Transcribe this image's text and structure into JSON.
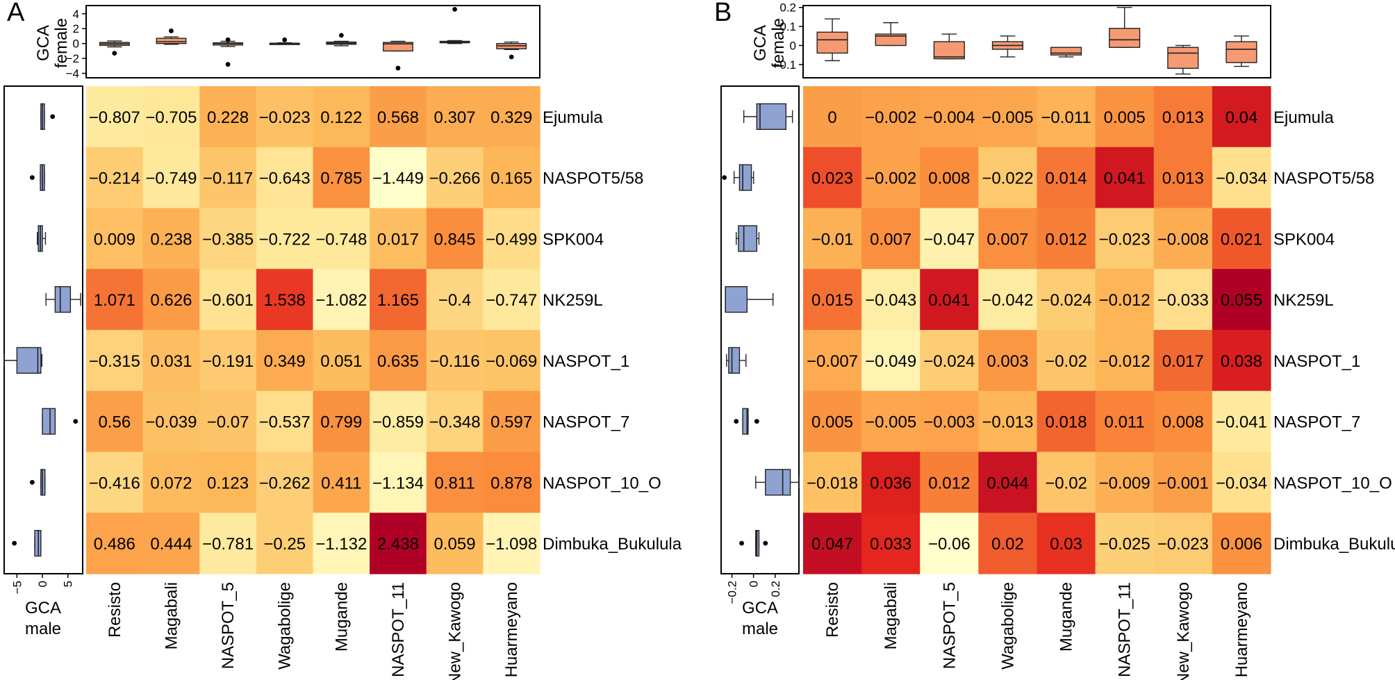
{
  "chart_data": [
    {
      "panel": "A",
      "type": "heatmap",
      "panel_label": "A",
      "xlabel_top": [
        "GCA",
        "female"
      ],
      "xlabel_left": [
        "GCA",
        "male"
      ],
      "female_axis": {
        "ylim": [
          -4.6,
          5.1
        ],
        "ticks": [
          4,
          2,
          0,
          -2,
          -4
        ],
        "tick_labels": [
          "4",
          "2",
          "0",
          "−2",
          "−4"
        ]
      },
      "male_axis": {
        "xlim": [
          -7.5,
          7.9
        ],
        "ticks": [
          -5,
          0,
          5
        ],
        "tick_labels": [
          "−5",
          "0",
          "5"
        ]
      },
      "columns": [
        "Resisto",
        "Magabali",
        "NASPOT_5",
        "Wagabolige",
        "Mugande",
        "NASPOT_11",
        "New_Kawogo",
        "Huarmeyano"
      ],
      "rows": [
        "Ejumula",
        "NASPOT5/58",
        "SPK004",
        "NK259L",
        "NASPOT_1",
        "NASPOT_7",
        "NASPOT_10_O",
        "Dimbuka_Bukulula"
      ],
      "value_range": [
        -1.449,
        2.438
      ],
      "values": [
        [
          -0.807,
          -0.705,
          0.228,
          -0.023,
          0.122,
          0.568,
          0.307,
          0.329
        ],
        [
          -0.214,
          -0.749,
          -0.117,
          -0.643,
          0.785,
          -1.449,
          -0.266,
          0.165
        ],
        [
          0.009,
          0.238,
          -0.385,
          -0.722,
          -0.748,
          0.017,
          0.845,
          -0.499
        ],
        [
          1.071,
          0.626,
          -0.601,
          1.538,
          -1.082,
          1.165,
          -0.4,
          -0.747
        ],
        [
          -0.315,
          0.031,
          -0.191,
          0.349,
          0.051,
          0.635,
          -0.116,
          -0.069
        ],
        [
          0.56,
          -0.039,
          -0.07,
          -0.537,
          0.799,
          -0.859,
          -0.348,
          0.597
        ],
        [
          -0.416,
          0.072,
          0.123,
          -0.262,
          0.411,
          -1.134,
          0.811,
          0.878
        ],
        [
          0.486,
          0.444,
          -0.781,
          -0.25,
          -1.132,
          2.438,
          0.059,
          -1.098
        ]
      ],
      "labels": [
        [
          "−0.807",
          "−0.705",
          "0.228",
          "−0.023",
          "0.122",
          "0.568",
          "0.307",
          "0.329"
        ],
        [
          "−0.214",
          "−0.749",
          "−0.117",
          "−0.643",
          "0.785",
          "−1.449",
          "−0.266",
          "0.165"
        ],
        [
          "0.009",
          "0.238",
          "−0.385",
          "−0.722",
          "−0.748",
          "0.017",
          "0.845",
          "−0.499"
        ],
        [
          "1.071",
          "0.626",
          "−0.601",
          "1.538",
          "−1.082",
          "1.165",
          "−0.4",
          "−0.747"
        ],
        [
          "−0.315",
          "0.031",
          "−0.191",
          "0.349",
          "0.051",
          "0.635",
          "−0.116",
          "−0.069"
        ],
        [
          "0.56",
          "−0.039",
          "−0.07",
          "−0.537",
          "0.799",
          "−0.859",
          "−0.348",
          "0.597"
        ],
        [
          "−0.416",
          "0.072",
          "0.123",
          "−0.262",
          "0.411",
          "−1.134",
          "0.811",
          "0.878"
        ],
        [
          "0.486",
          "0.444",
          "−0.781",
          "−0.25",
          "−1.132",
          "2.438",
          "0.059",
          "−1.098"
        ]
      ],
      "female_boxes": [
        {
          "q1": -0.25,
          "median": -0.05,
          "q3": 0.15,
          "whisker_low": -0.45,
          "whisker_high": 0.35,
          "outliers": [
            -1.3
          ]
        },
        {
          "q1": 0.0,
          "median": 0.25,
          "q3": 0.7,
          "whisker_low": -0.1,
          "whisker_high": 0.9,
          "outliers": [
            1.7
          ]
        },
        {
          "q1": -0.2,
          "median": 0.0,
          "q3": 0.1,
          "whisker_low": -0.4,
          "whisker_high": 0.3,
          "outliers": [
            0.5,
            -2.8
          ]
        },
        {
          "q1": -0.05,
          "median": 0.0,
          "q3": 0.05,
          "whisker_low": -0.1,
          "whisker_high": 0.1,
          "outliers": [
            0.5
          ]
        },
        {
          "q1": -0.1,
          "median": 0.05,
          "q3": 0.2,
          "whisker_low": -0.3,
          "whisker_high": 0.3,
          "outliers": [
            1.1
          ]
        },
        {
          "q1": -1.0,
          "median": -0.05,
          "q3": 0.15,
          "whisker_low": -1.0,
          "whisker_high": 0.3,
          "outliers": [
            -3.3
          ]
        },
        {
          "q1": 0.1,
          "median": 0.2,
          "q3": 0.3,
          "whisker_low": 0.0,
          "whisker_high": 0.4,
          "outliers": [
            4.6
          ]
        },
        {
          "q1": -0.7,
          "median": -0.3,
          "q3": 0.0,
          "whisker_low": -0.8,
          "whisker_high": 0.2,
          "outliers": [
            -1.8
          ]
        }
      ],
      "male_boxes": [
        {
          "q1": -0.3,
          "median": 0.0,
          "q3": 0.4,
          "whisker_low": -0.3,
          "whisker_high": 0.4,
          "outliers": [
            2.0
          ]
        },
        {
          "q1": -0.4,
          "median": 0.0,
          "q3": 0.4,
          "whisker_low": -0.4,
          "whisker_high": 0.4,
          "outliers": [
            -2.0
          ]
        },
        {
          "q1": -0.8,
          "median": -0.4,
          "q3": 0.0,
          "whisker_low": -1.0,
          "whisker_high": 0.6,
          "outliers": []
        },
        {
          "q1": 2.5,
          "median": 3.5,
          "q3": 5.5,
          "whisker_low": 0.7,
          "whisker_high": 7.5,
          "outliers": []
        },
        {
          "q1": -5.0,
          "median": -0.9,
          "q3": -0.3,
          "whisker_low": -7.5,
          "whisker_high": -0.1,
          "outliers": []
        },
        {
          "q1": 0.0,
          "median": 1.5,
          "q3": 2.5,
          "whisker_low": 0.0,
          "whisker_high": 2.5,
          "outliers": [
            6.5
          ]
        },
        {
          "q1": -0.3,
          "median": 0.0,
          "q3": 0.5,
          "whisker_low": -0.3,
          "whisker_high": 0.5,
          "outliers": [
            -2.0
          ]
        },
        {
          "q1": -1.5,
          "median": -0.8,
          "q3": -0.3,
          "whisker_low": -1.5,
          "whisker_high": -0.3,
          "outliers": [
            -5.5
          ]
        }
      ]
    },
    {
      "panel": "B",
      "type": "heatmap",
      "panel_label": "B",
      "xlabel_top": [
        "GCA",
        "female"
      ],
      "xlabel_left": [
        "GCA",
        "male"
      ],
      "female_axis": {
        "ylim": [
          -0.17,
          0.21
        ],
        "ticks": [
          0.2,
          0.1,
          0.0,
          -0.1
        ],
        "tick_labels": [
          "0.2",
          "0.1",
          "0",
          "−0.1"
        ]
      },
      "male_axis": {
        "xlim": [
          -0.3,
          0.42
        ],
        "ticks": [
          -0.2,
          0.0,
          0.2
        ],
        "tick_labels": [
          "−0.2",
          "0",
          "0.2"
        ]
      },
      "columns": [
        "Resisto",
        "Magabali",
        "NASPOT_5",
        "Wagabolige",
        "Mugande",
        "NASPOT_11",
        "New_Kawogo",
        "Huarmeyano"
      ],
      "rows": [
        "Ejumula",
        "NASPOT5/58",
        "SPK004",
        "NK259L",
        "NASPOT_1",
        "NASPOT_7",
        "NASPOT_10_O",
        "Dimbuka_Bukulula"
      ],
      "value_range": [
        -0.06,
        0.055
      ],
      "values": [
        [
          0,
          -0.002,
          -0.004,
          -0.005,
          -0.011,
          0.005,
          0.013,
          0.04
        ],
        [
          0.023,
          -0.002,
          0.008,
          -0.022,
          0.014,
          0.041,
          0.013,
          -0.034
        ],
        [
          -0.01,
          0.007,
          -0.047,
          0.007,
          0.012,
          -0.023,
          -0.008,
          0.021
        ],
        [
          0.015,
          -0.043,
          0.041,
          -0.042,
          -0.024,
          -0.012,
          -0.033,
          0.055
        ],
        [
          -0.007,
          -0.049,
          -0.024,
          0.003,
          -0.02,
          -0.012,
          0.017,
          0.038
        ],
        [
          0.005,
          -0.005,
          -0.003,
          -0.013,
          0.018,
          0.011,
          0.008,
          -0.041
        ],
        [
          -0.018,
          0.036,
          0.012,
          0.044,
          -0.02,
          -0.009,
          -0.001,
          -0.034
        ],
        [
          0.047,
          0.033,
          -0.06,
          0.02,
          0.03,
          -0.025,
          -0.023,
          0.006
        ]
      ],
      "labels": [
        [
          "0",
          "−0.002",
          "−0.004",
          "−0.005",
          "−0.011",
          "0.005",
          "0.013",
          "0.04"
        ],
        [
          "0.023",
          "−0.002",
          "0.008",
          "−0.022",
          "0.014",
          "0.041",
          "0.013",
          "−0.034"
        ],
        [
          "−0.01",
          "0.007",
          "−0.047",
          "0.007",
          "0.012",
          "−0.023",
          "−0.008",
          "0.021"
        ],
        [
          "0.015",
          "−0.043",
          "0.041",
          "−0.042",
          "−0.024",
          "−0.012",
          "−0.033",
          "0.055"
        ],
        [
          "−0.007",
          "−0.049",
          "−0.024",
          "0.003",
          "−0.02",
          "−0.012",
          "0.017",
          "0.038"
        ],
        [
          "0.005",
          "−0.005",
          "−0.003",
          "−0.013",
          "0.018",
          "0.011",
          "0.008",
          "−0.041"
        ],
        [
          "−0.018",
          "0.036",
          "0.012",
          "0.044",
          "−0.02",
          "−0.009",
          "−0.001",
          "−0.034"
        ],
        [
          "0.047",
          "0.033",
          "−0.06",
          "0.02",
          "0.03",
          "−0.025",
          "−0.023",
          "0.006"
        ]
      ],
      "female_boxes": [
        {
          "q1": -0.04,
          "median": 0.03,
          "q3": 0.07,
          "whisker_low": -0.08,
          "whisker_high": 0.14,
          "outliers": []
        },
        {
          "q1": 0.0,
          "median": 0.05,
          "q3": 0.06,
          "whisker_low": 0.0,
          "whisker_high": 0.12,
          "outliers": []
        },
        {
          "q1": -0.07,
          "median": -0.06,
          "q3": 0.02,
          "whisker_low": -0.07,
          "whisker_high": 0.06,
          "outliers": []
        },
        {
          "q1": -0.02,
          "median": 0.0,
          "q3": 0.02,
          "whisker_low": -0.06,
          "whisker_high": 0.05,
          "outliers": []
        },
        {
          "q1": -0.05,
          "median": -0.04,
          "q3": -0.01,
          "whisker_low": -0.06,
          "whisker_high": -0.01,
          "outliers": []
        },
        {
          "q1": -0.01,
          "median": 0.03,
          "q3": 0.09,
          "whisker_low": -0.01,
          "whisker_high": 0.2,
          "outliers": []
        },
        {
          "q1": -0.12,
          "median": -0.04,
          "q3": -0.01,
          "whisker_low": -0.15,
          "whisker_high": 0.0,
          "outliers": []
        },
        {
          "q1": -0.09,
          "median": -0.02,
          "q3": 0.02,
          "whisker_low": -0.11,
          "whisker_high": 0.05,
          "outliers": []
        }
      ],
      "male_boxes": [
        {
          "q1": 0.03,
          "median": 0.06,
          "q3": 0.3,
          "whisker_low": -0.09,
          "whisker_high": 0.36,
          "outliers": []
        },
        {
          "q1": -0.13,
          "median": -0.1,
          "q3": -0.02,
          "whisker_low": -0.18,
          "whisker_high": 0.0,
          "outliers": [
            -0.27
          ]
        },
        {
          "q1": -0.14,
          "median": -0.09,
          "q3": 0.03,
          "whisker_low": -0.16,
          "whisker_high": 0.05,
          "outliers": []
        },
        {
          "q1": -0.26,
          "median": -0.26,
          "q3": -0.06,
          "whisker_low": -0.26,
          "whisker_high": 0.18,
          "outliers": []
        },
        {
          "q1": -0.23,
          "median": -0.2,
          "q3": -0.13,
          "whisker_low": -0.25,
          "whisker_high": -0.07,
          "outliers": []
        },
        {
          "q1": -0.1,
          "median": -0.06,
          "q3": -0.05,
          "whisker_low": -0.1,
          "whisker_high": -0.05,
          "outliers": [
            -0.16,
            0.03
          ]
        },
        {
          "q1": 0.11,
          "median": 0.27,
          "q3": 0.34,
          "whisker_low": 0.02,
          "whisker_high": 0.42,
          "outliers": []
        },
        {
          "q1": 0.02,
          "median": 0.03,
          "q3": 0.05,
          "whisker_low": 0.02,
          "whisker_high": 0.05,
          "outliers": [
            -0.11,
            0.11
          ]
        }
      ]
    }
  ]
}
